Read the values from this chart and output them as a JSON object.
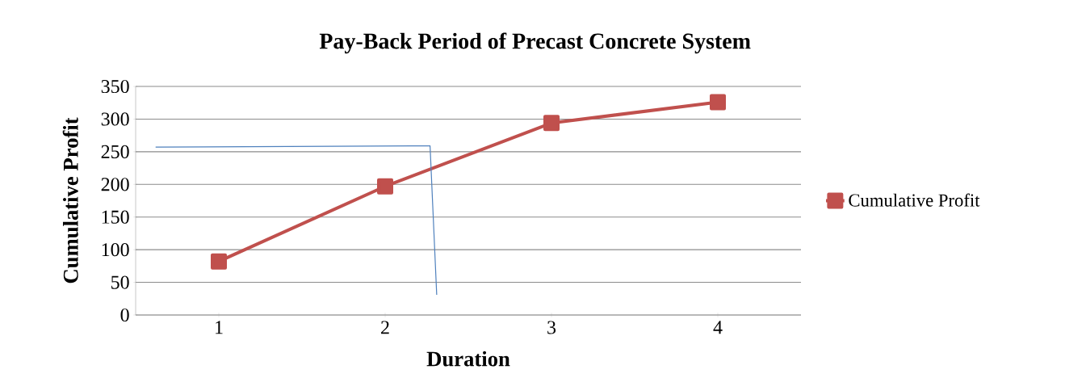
{
  "chart_data": {
    "type": "line",
    "title": "Pay-Back Period of Precast Concrete System",
    "xlabel": "Duration",
    "ylabel": "Cumulative Profit",
    "xlim": [
      0.5,
      4.5
    ],
    "xticks": [
      1,
      2,
      3,
      4
    ],
    "ylim": [
      0,
      350
    ],
    "yticks": [
      0,
      50,
      100,
      150,
      200,
      250,
      300,
      350
    ],
    "grid": "y",
    "legend": "right",
    "series": [
      {
        "name": "Cumulative Profit",
        "color": "#c0504d",
        "marker": "square",
        "x": [
          1,
          2,
          3,
          4
        ],
        "values": [
          82,
          197,
          294,
          326
        ]
      },
      {
        "color": "#4f81bd",
        "marker": "none",
        "x": [
          0.62,
          2.27,
          2.31
        ],
        "values": [
          257,
          259,
          31
        ]
      }
    ]
  }
}
